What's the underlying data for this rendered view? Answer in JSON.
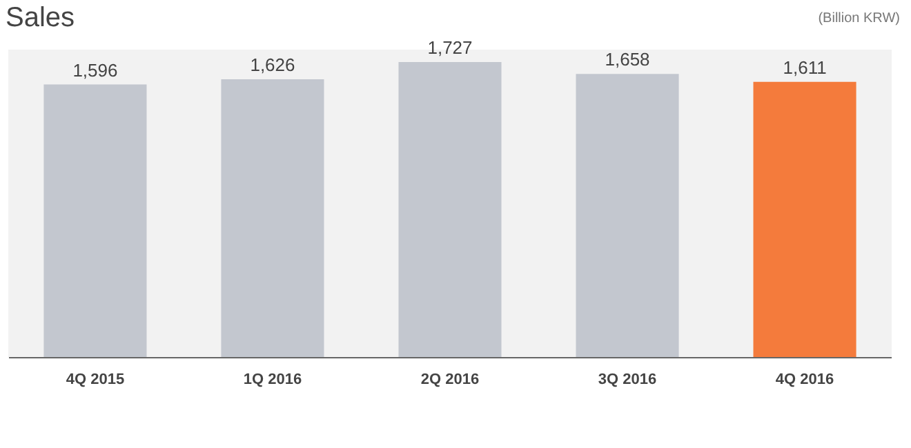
{
  "chart_data": {
    "type": "bar",
    "title": "Sales",
    "annotations": [
      "(Billion KRW)"
    ],
    "categories": [
      "4Q 2015",
      "1Q 2016",
      "2Q 2016",
      "3Q 2016",
      "4Q 2016"
    ],
    "values": [
      1596,
      1626,
      1727,
      1658,
      1611
    ],
    "value_labels": [
      "1,596",
      "1,626",
      "1,727",
      "1,658",
      "1,611"
    ],
    "colors": [
      "#c3c7cf",
      "#c3c7cf",
      "#c3c7cf",
      "#c3c7cf",
      "#f47b3c"
    ]
  }
}
